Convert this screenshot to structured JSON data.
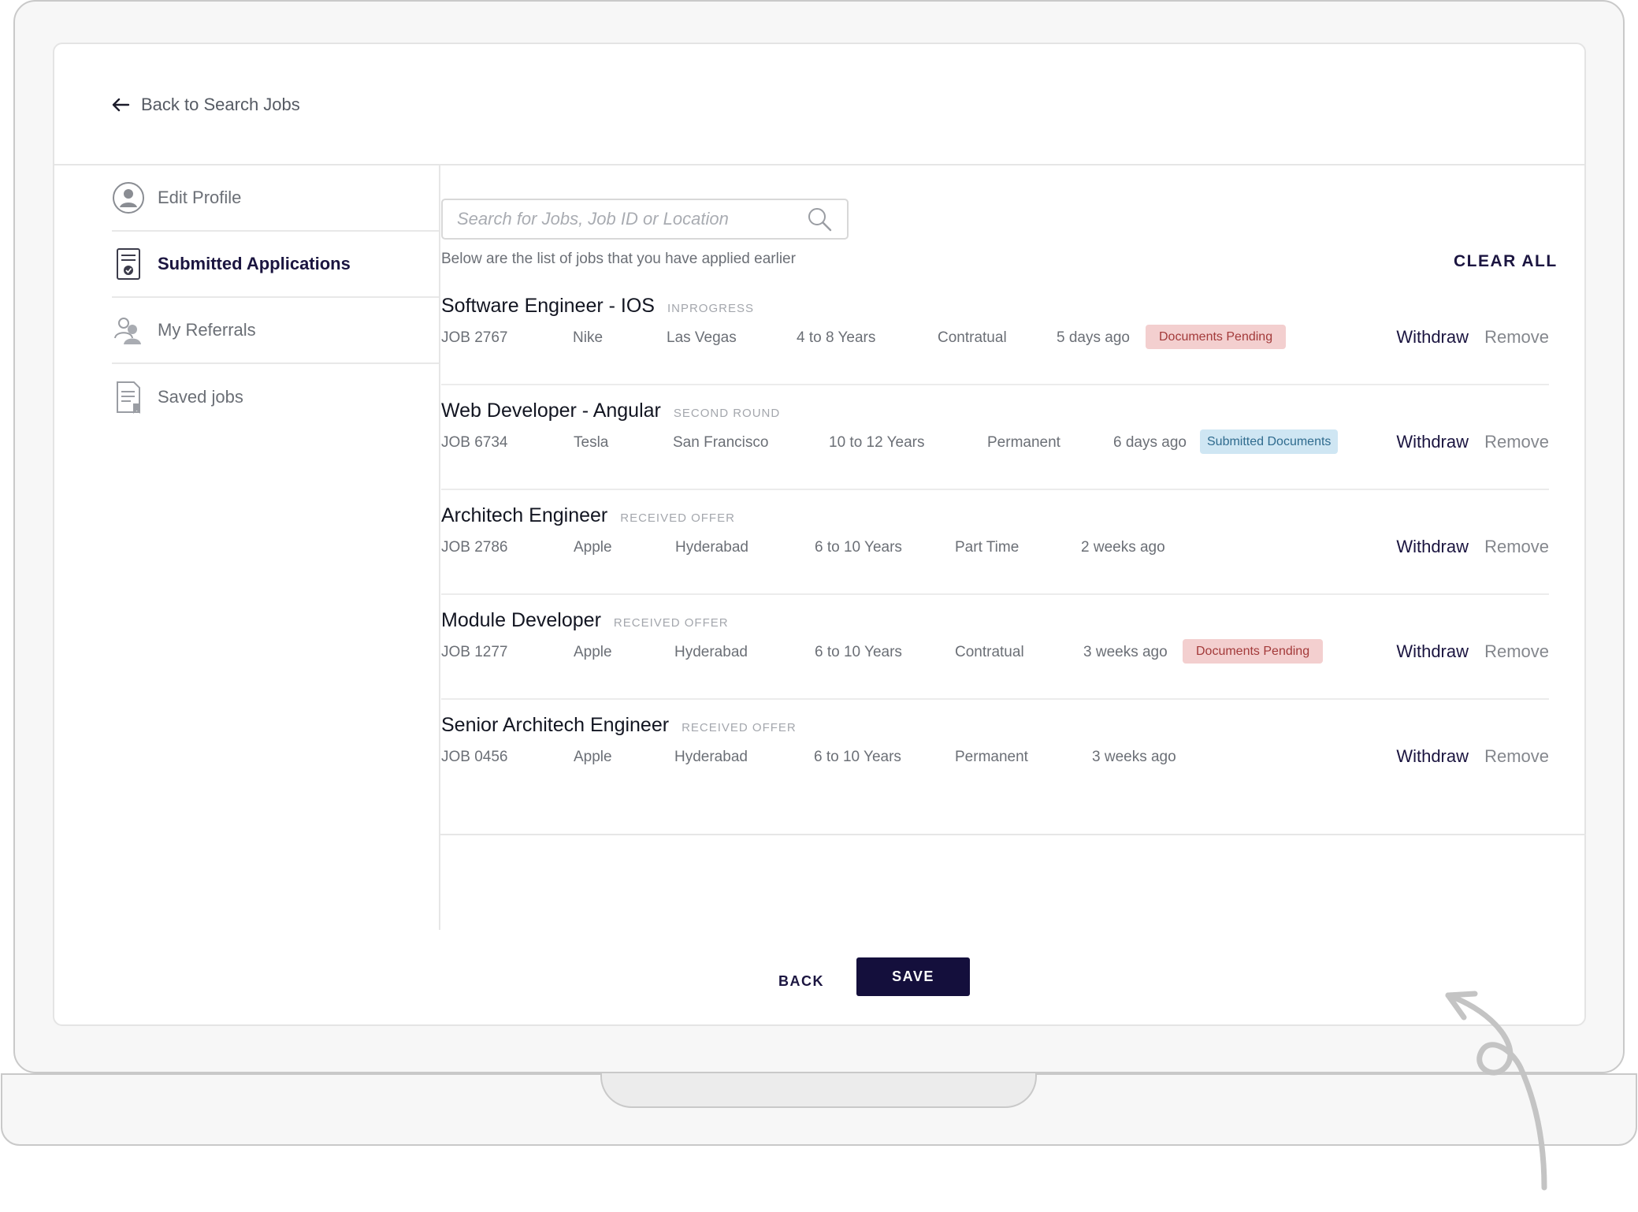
{
  "header": {
    "back_label": "Back to Search Jobs"
  },
  "sidebar": {
    "items": [
      {
        "label": "Edit Profile",
        "icon": "user-circle-icon",
        "active": false
      },
      {
        "label": "Submitted Applications",
        "icon": "document-check-icon",
        "active": true
      },
      {
        "label": "My Referrals",
        "icon": "people-icon",
        "active": false
      },
      {
        "label": "Saved jobs",
        "icon": "bookmark-document-icon",
        "active": false
      }
    ]
  },
  "search": {
    "placeholder": "Search for Jobs, Job ID or Location",
    "value": ""
  },
  "list": {
    "subtitle": "Below are the list of jobs that you have applied earlier",
    "clear_all": "CLEAR ALL"
  },
  "jobs": [
    {
      "title": "Software Engineer - IOS",
      "status": "INPROGRESS",
      "id": "JOB 2767",
      "company": "Nike",
      "location": "Las Vegas",
      "experience": "4 to 8 Years",
      "type": "Contratual",
      "posted": "5 days ago",
      "badge": "Documents Pending",
      "badge_kind": "pending",
      "withdraw": "Withdraw",
      "remove": "Remove"
    },
    {
      "title": "Web Developer - Angular",
      "status": "SECOND ROUND",
      "id": "JOB 6734",
      "company": "Tesla",
      "location": "San Francisco",
      "experience": "10 to 12 Years",
      "type": "Permanent",
      "posted": "6 days ago",
      "badge": "Submitted Documents",
      "badge_kind": "submitted",
      "withdraw": "Withdraw",
      "remove": "Remove"
    },
    {
      "title": "Architech Engineer",
      "status": "RECEIVED OFFER",
      "id": "JOB 2786",
      "company": "Apple",
      "location": "Hyderabad",
      "experience": "6 to 10 Years",
      "type": "Part Time",
      "posted": "2 weeks ago",
      "badge": "",
      "badge_kind": "",
      "withdraw": "Withdraw",
      "remove": "Remove"
    },
    {
      "title": "Module Developer",
      "status": "RECEIVED OFFER",
      "id": "JOB 1277",
      "company": "Apple",
      "location": "Hyderabad",
      "experience": "6 to 10 Years",
      "type": "Contratual",
      "posted": "3 weeks ago",
      "badge": "Documents Pending",
      "badge_kind": "pending",
      "withdraw": "Withdraw",
      "remove": "Remove"
    },
    {
      "title": "Senior Architech Engineer",
      "status": "RECEIVED OFFER",
      "id": "JOB 0456",
      "company": "Apple",
      "location": "Hyderabad",
      "experience": "6 to 10 Years",
      "type": "Permanent",
      "posted": "3 weeks ago",
      "badge": "",
      "badge_kind": "",
      "withdraw": "Withdraw",
      "remove": "Remove"
    }
  ],
  "footer": {
    "back_label": "BACK",
    "save_label": "SAVE"
  },
  "colors": {
    "accent": "#140f3c",
    "pending_bg": "#f3cfcf",
    "pending_text": "#a33a3a",
    "submitted_bg": "#cfe6f3",
    "submitted_text": "#2f6b8e"
  }
}
